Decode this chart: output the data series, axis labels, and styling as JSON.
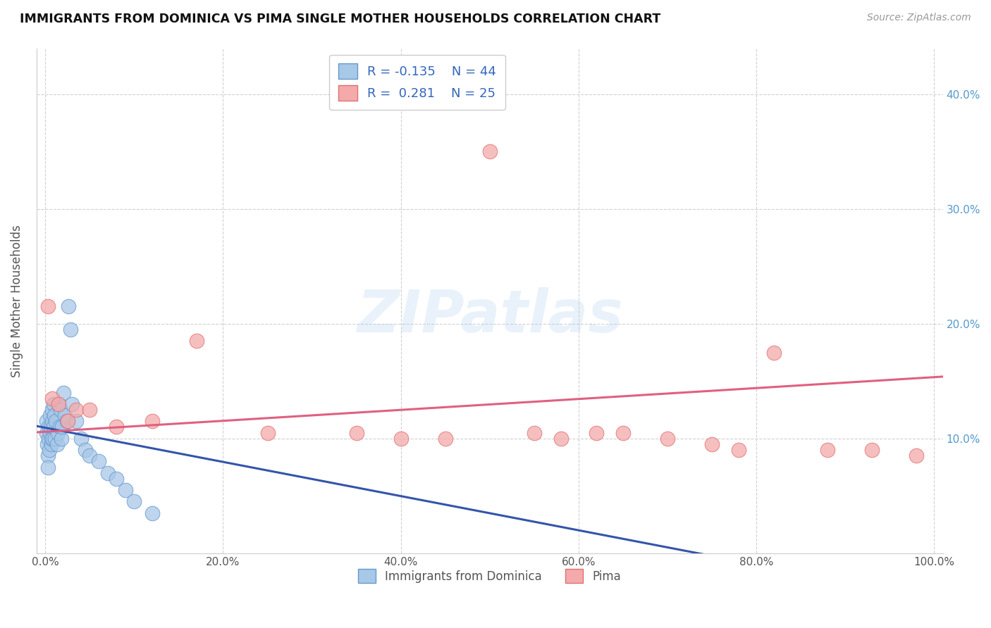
{
  "title": "IMMIGRANTS FROM DOMINICA VS PIMA SINGLE MOTHER HOUSEHOLDS CORRELATION CHART",
  "source": "Source: ZipAtlas.com",
  "ylabel": "Single Mother Households",
  "x_tick_labels": [
    "0.0%",
    "20.0%",
    "40.0%",
    "60.0%",
    "80.0%",
    "100.0%"
  ],
  "x_tick_values": [
    0,
    20,
    40,
    60,
    80,
    100
  ],
  "y_tick_labels": [
    "10.0%",
    "20.0%",
    "30.0%",
    "40.0%"
  ],
  "y_tick_values": [
    10,
    20,
    30,
    40
  ],
  "legend_labels": [
    "Immigrants from Dominica",
    "Pima"
  ],
  "blue_R": -0.135,
  "blue_N": 44,
  "pink_R": 0.281,
  "pink_N": 25,
  "blue_dot_color": "#A8C8E8",
  "blue_edge_color": "#6699CC",
  "pink_dot_color": "#F4AAAA",
  "pink_edge_color": "#E07070",
  "blue_line_color": "#3355AA",
  "pink_line_color": "#E06080",
  "background_color": "#FFFFFF",
  "grid_color": "#CCCCCC",
  "blue_x": [
    0.1,
    0.15,
    0.2,
    0.25,
    0.3,
    0.35,
    0.4,
    0.45,
    0.5,
    0.55,
    0.6,
    0.65,
    0.7,
    0.75,
    0.8,
    0.85,
    0.9,
    0.95,
    1.0,
    1.1,
    1.2,
    1.3,
    1.4,
    1.5,
    1.6,
    1.7,
    1.8,
    1.9,
    2.0,
    2.2,
    2.4,
    2.6,
    2.8,
    3.0,
    3.5,
    4.0,
    4.5,
    5.0,
    6.0,
    7.0,
    8.0,
    9.0,
    10.0,
    12.0
  ],
  "blue_y": [
    11.5,
    10.5,
    9.5,
    8.5,
    7.5,
    10.0,
    11.0,
    9.0,
    12.0,
    10.5,
    11.0,
    9.5,
    10.0,
    11.5,
    12.5,
    10.0,
    13.0,
    11.0,
    12.0,
    10.0,
    11.5,
    9.5,
    10.5,
    13.0,
    11.0,
    12.5,
    10.0,
    11.0,
    14.0,
    12.0,
    11.5,
    21.5,
    19.5,
    13.0,
    11.5,
    10.0,
    9.0,
    8.5,
    8.0,
    7.0,
    6.5,
    5.5,
    4.5,
    3.5
  ],
  "pink_x": [
    0.3,
    0.8,
    1.5,
    2.5,
    3.5,
    5.0,
    8.0,
    12.0,
    17.0,
    25.0,
    35.0,
    40.0,
    45.0,
    50.0,
    55.0,
    58.0,
    62.0,
    65.0,
    70.0,
    75.0,
    78.0,
    82.0,
    88.0,
    93.0,
    98.0
  ],
  "pink_y": [
    21.5,
    13.5,
    13.0,
    11.5,
    12.5,
    12.5,
    11.0,
    11.5,
    18.5,
    10.5,
    10.5,
    10.0,
    10.0,
    35.0,
    10.5,
    10.0,
    10.5,
    10.5,
    10.0,
    9.5,
    9.0,
    17.5,
    9.0,
    9.0,
    8.5
  ]
}
